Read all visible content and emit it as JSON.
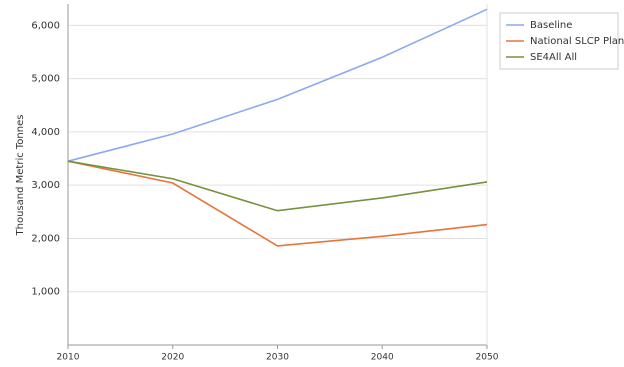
{
  "chart_data": {
    "type": "line",
    "y_label": "Thousand Metric Tonnes",
    "x": [
      2010,
      2020,
      2030,
      2040,
      2050
    ],
    "xlim": [
      2010,
      2050
    ],
    "xticks": [
      2010,
      2020,
      2030,
      2040,
      2050
    ],
    "ylim": [
      0,
      6400
    ],
    "yticks": [
      {
        "value": 1000,
        "label": "1,000"
      },
      {
        "value": 2000,
        "label": "2,000"
      },
      {
        "value": 3000,
        "label": "3,000"
      },
      {
        "value": 4000,
        "label": "4,000"
      },
      {
        "value": 5000,
        "label": "5,000"
      },
      {
        "value": 6000,
        "label": "6,000"
      }
    ],
    "grid": true,
    "legend": "top-right",
    "series": [
      {
        "name": "Baseline",
        "color": "#8ea9f0",
        "values": [
          3450,
          3960,
          4610,
          5400,
          6300
        ]
      },
      {
        "name": "National SLCP Plan",
        "color": "#e8743b",
        "values": [
          3450,
          3040,
          1860,
          2040,
          2260
        ]
      },
      {
        "name": "SE4All All",
        "color": "#76923c",
        "values": [
          3450,
          3120,
          2520,
          2760,
          3060
        ]
      }
    ]
  }
}
